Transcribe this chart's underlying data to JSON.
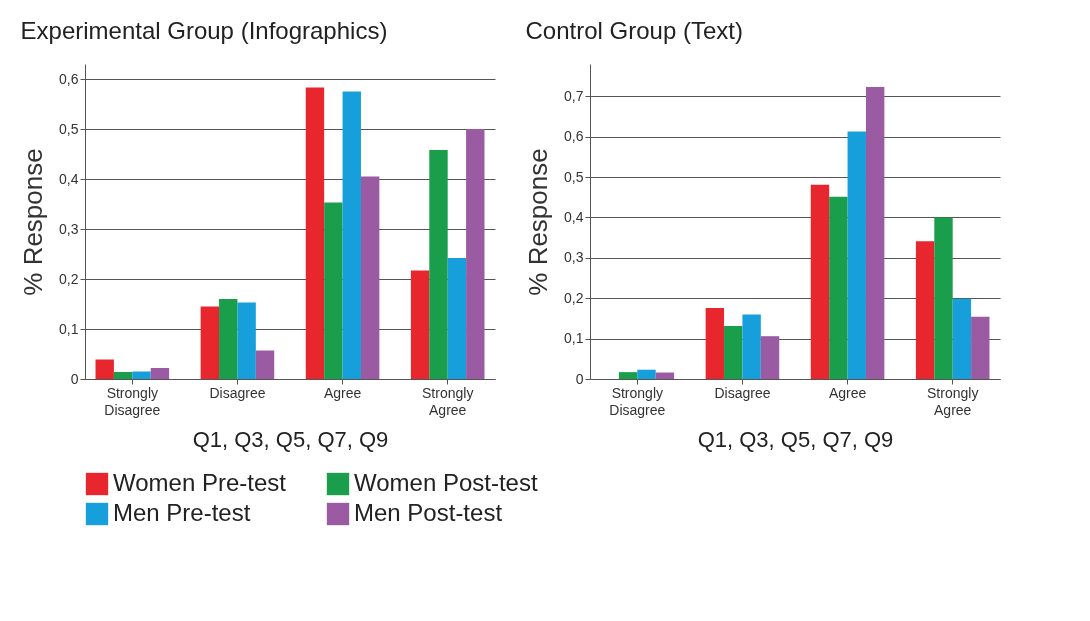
{
  "chart_data": [
    {
      "type": "bar",
      "title": "Experimental Group (Infographics)",
      "xlabel": "Q1, Q3, Q5, Q7, Q9",
      "ylabel": "% Response",
      "categories": [
        "Strongly Disagree",
        "Disagree",
        "Agree",
        "Strongly Agree"
      ],
      "series": [
        {
          "name": "Women Pre-test",
          "color": "#e8262d",
          "values": [
            0.039,
            0.145,
            0.583,
            0.217
          ]
        },
        {
          "name": "Women Post-test",
          "color": "#1a9e4b",
          "values": [
            0.014,
            0.16,
            0.353,
            0.458
          ]
        },
        {
          "name": "Men Pre-test",
          "color": "#179fdb",
          "values": [
            0.015,
            0.153,
            0.575,
            0.242
          ]
        },
        {
          "name": "Men Post-test",
          "color": "#9a5ba3",
          "values": [
            0.022,
            0.057,
            0.405,
            0.5
          ]
        }
      ],
      "ylim": [
        0,
        0.63
      ],
      "yticks": [
        {
          "value": 0,
          "label": "0"
        },
        {
          "value": 0.1,
          "label": "0,1"
        },
        {
          "value": 0.2,
          "label": "0,2"
        },
        {
          "value": 0.3,
          "label": "0,3"
        },
        {
          "value": 0.4,
          "label": "0,4"
        },
        {
          "value": 0.5,
          "label": "0,5"
        },
        {
          "value": 0.6,
          "label": "0,6"
        }
      ],
      "grid": "y",
      "legend": "bottom"
    },
    {
      "type": "bar",
      "title": "Control Group (Text)",
      "xlabel": "Q1, Q3, Q5, Q7, Q9",
      "ylabel": "% Response",
      "categories": [
        "Strongly Disagree",
        "Disagree",
        "Agree",
        "Strongly Agree"
      ],
      "series": [
        {
          "name": "Women Pre-test",
          "color": "#e8262d",
          "values": [
            0,
            0.176,
            0.481,
            0.341
          ]
        },
        {
          "name": "Women Post-test",
          "color": "#1a9e4b",
          "values": [
            0.017,
            0.131,
            0.451,
            0.4
          ]
        },
        {
          "name": "Men Pre-test",
          "color": "#179fdb",
          "values": [
            0.023,
            0.16,
            0.613,
            0.199
          ]
        },
        {
          "name": "Men Post-test",
          "color": "#9a5ba3",
          "values": [
            0.016,
            0.106,
            0.723,
            0.154
          ]
        }
      ],
      "ylim": [
        0,
        0.78
      ],
      "yticks": [
        {
          "value": 0,
          "label": "0"
        },
        {
          "value": 0.1,
          "label": "0,1"
        },
        {
          "value": 0.2,
          "label": "0,2"
        },
        {
          "value": 0.3,
          "label": "0,3"
        },
        {
          "value": 0.4,
          "label": "0,4"
        },
        {
          "value": 0.5,
          "label": "0,5"
        },
        {
          "value": 0.6,
          "label": "0,6"
        },
        {
          "value": 0.7,
          "label": "0,7"
        }
      ],
      "grid": "y",
      "legend": "bottom"
    }
  ]
}
